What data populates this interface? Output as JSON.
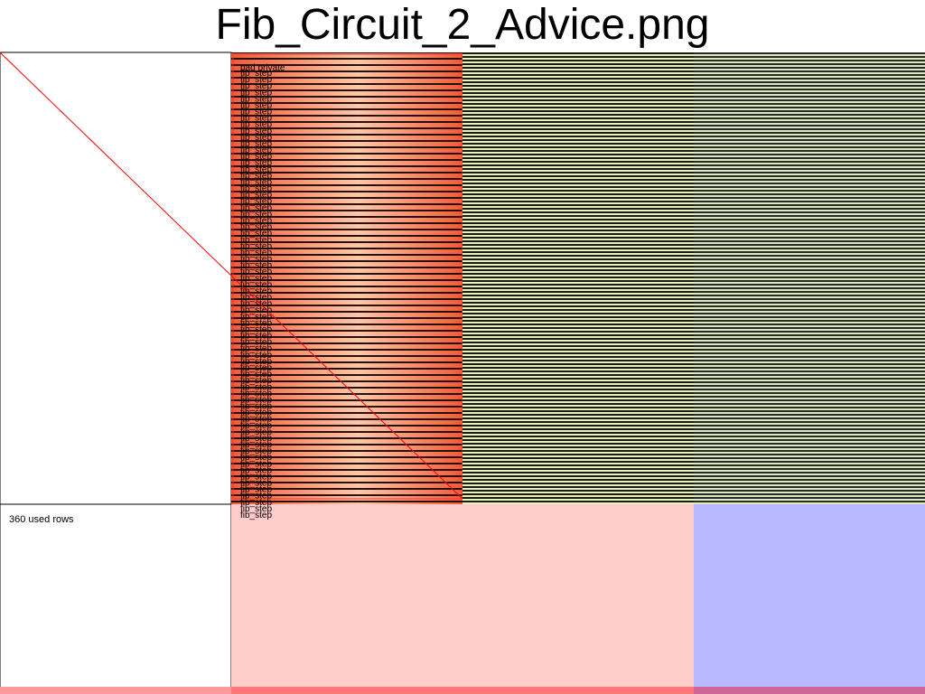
{
  "title": "Fib_Circuit_2_Advice.png",
  "used_rows_label": "360 used rows",
  "region_labels": {
    "first": "pad private",
    "repeated": "fib_step",
    "repeat_count": 70
  },
  "colors": {
    "background": "#ffffff",
    "advice_stripe": "#ff7a5a",
    "advice_stripe_light": "#ffc2a4",
    "advice_dark": "#2a0f08",
    "selector_stripe": "#e8f0c0",
    "selector_dark": "#1a1a10",
    "fixed_stripe": "#dde8c4",
    "unused_advice": "#ffcccc",
    "unused_fixed": "#b8b8ff",
    "bottom_advice": "#ff9999",
    "bottom_fixed": "#cc6699",
    "diagonal_line": "#ff0000",
    "region_border": "#000000"
  }
}
